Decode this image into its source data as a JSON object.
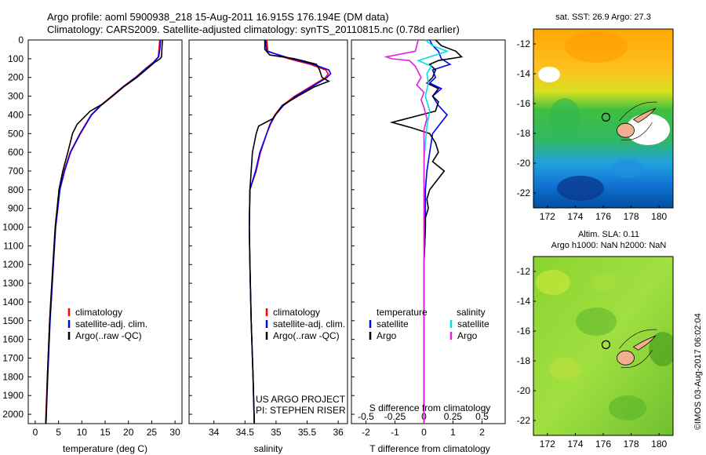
{
  "header": {
    "title_line1": "Argo profile: aoml 5900938_218 15-Aug-2011 16.915S 176.194E (DM data)",
    "title_line2": "Climatology: CARS2009. Satellite-adjusted climatology: synTS_20110815.nc (0.78d earlier)"
  },
  "colors": {
    "climatology": "#ff0000",
    "satellite": "#0000ff",
    "argo": "#000000",
    "salinity_satellite": "#00e0e0",
    "salinity_argo": "#e020e0",
    "land": "#f0b090"
  },
  "depth_axis": {
    "min": 0,
    "max": 2050,
    "inverted": true,
    "ticks": [
      0,
      100,
      200,
      300,
      400,
      500,
      600,
      700,
      800,
      900,
      1000,
      1100,
      1200,
      1300,
      1400,
      1500,
      1600,
      1700,
      1800,
      1900,
      2000
    ]
  },
  "chart_data": [
    {
      "type": "line",
      "id": "temperature",
      "xlabel": "temperature (deg C)",
      "xlim": [
        -1.5,
        31.5
      ],
      "xticks": [
        0,
        5,
        10,
        15,
        20,
        25,
        30
      ],
      "legend": {
        "placement": "lower-center",
        "entries": [
          "climatology",
          "satellite-adj. clim.",
          "Argo(..raw -QC)"
        ]
      },
      "series": [
        {
          "name": "climatology",
          "color": "#ff0000",
          "depth": [
            0,
            40,
            90,
            120,
            150,
            200,
            250,
            300,
            350,
            400,
            500,
            600,
            700,
            800,
            1000,
            1200,
            1500,
            1800,
            2050
          ],
          "values": [
            26.7,
            26.6,
            26.4,
            25.3,
            23.8,
            21.5,
            18.8,
            16.4,
            14.0,
            12.0,
            9.6,
            7.5,
            6.2,
            5.2,
            4.3,
            3.8,
            3.1,
            2.6,
            2.2
          ]
        },
        {
          "name": "satellite-adj. clim.",
          "color": "#0000ff",
          "depth": [
            0,
            40,
            90,
            120,
            150,
            200,
            250,
            300,
            350,
            400,
            500,
            600,
            700,
            800,
            1000,
            1200,
            1500,
            1800,
            2050
          ],
          "values": [
            26.9,
            26.8,
            26.5,
            25.4,
            23.9,
            21.6,
            18.9,
            16.5,
            14.1,
            12.1,
            9.7,
            7.6,
            6.3,
            5.3,
            4.4,
            3.9,
            3.2,
            2.7,
            2.3
          ]
        },
        {
          "name": "Argo(..raw -QC)",
          "color": "#000000",
          "depth": [
            0,
            40,
            90,
            100,
            120,
            150,
            200,
            250,
            300,
            340,
            380,
            450,
            500,
            550,
            600,
            700,
            800,
            1000,
            1200,
            1500,
            1800,
            2050
          ],
          "values": [
            27.3,
            27.2,
            27.1,
            26.8,
            25.6,
            24.2,
            21.8,
            19.0,
            16.6,
            14.6,
            11.8,
            9.0,
            8.0,
            7.5,
            7.0,
            5.9,
            5.1,
            4.3,
            3.8,
            3.1,
            2.6,
            2.3
          ]
        }
      ]
    },
    {
      "type": "line",
      "id": "salinity",
      "xlabel": "salinity",
      "xlim": [
        33.6,
        36.15
      ],
      "xticks": [
        34,
        34.5,
        35,
        35.5,
        36
      ],
      "legend": {
        "placement": "lower-center",
        "entries": [
          "climatology",
          "satellite-adj. clim.",
          "Argo(..raw -QC)"
        ]
      },
      "annotation": {
        "line1": "US ARGO PROJECT",
        "line2": "PI: STEPHEN RISER"
      },
      "series": [
        {
          "name": "climatology",
          "color": "#ff0000",
          "depth": [
            0,
            60,
            100,
            130,
            160,
            180,
            200,
            250,
            300,
            350,
            400,
            450,
            500,
            600,
            700,
            800,
            1000,
            1200,
            1500,
            1800,
            2050
          ],
          "values": [
            34.85,
            34.87,
            35.2,
            35.55,
            35.8,
            35.84,
            35.8,
            35.55,
            35.3,
            35.1,
            34.98,
            34.9,
            34.85,
            34.75,
            34.68,
            34.58,
            34.57,
            34.58,
            34.6,
            34.63,
            34.65
          ]
        },
        {
          "name": "satellite-adj. clim.",
          "color": "#0000ff",
          "depth": [
            0,
            60,
            100,
            130,
            160,
            180,
            200,
            250,
            300,
            350,
            400,
            450,
            500,
            600,
            700,
            800,
            1000,
            1200,
            1500,
            1800,
            2050
          ],
          "values": [
            34.83,
            34.85,
            35.25,
            35.6,
            35.85,
            35.88,
            35.82,
            35.58,
            35.32,
            35.12,
            34.99,
            34.91,
            34.85,
            34.74,
            34.67,
            34.58,
            34.57,
            34.58,
            34.6,
            34.63,
            34.65
          ]
        },
        {
          "name": "Argo(..raw -QC)",
          "color": "#000000",
          "depth": [
            0,
            50,
            80,
            100,
            130,
            160,
            200,
            220,
            250,
            300,
            350,
            420,
            460,
            500,
            600,
            700,
            800,
            1000,
            1200,
            1500,
            1800,
            2050
          ],
          "values": [
            34.82,
            34.82,
            34.9,
            35.3,
            35.65,
            35.7,
            35.74,
            35.85,
            35.62,
            35.35,
            35.1,
            34.95,
            34.72,
            34.68,
            34.62,
            34.6,
            34.58,
            34.57,
            34.58,
            34.6,
            34.63,
            34.65
          ]
        }
      ]
    },
    {
      "type": "line",
      "id": "difference",
      "xlabel": "T difference from climatology",
      "xlabel_top": "S difference from climatology",
      "xlim": [
        -2.5,
        2.8
      ],
      "xticks": [
        -2,
        -1,
        0,
        1,
        2
      ],
      "xticks_top": [
        "-0.5",
        "-0.25",
        "0",
        "0.25",
        "0.5"
      ],
      "legend": {
        "placement": "lower-center",
        "groups": [
          {
            "title": "temperature",
            "entries": [
              "satellite",
              "Argo"
            ]
          },
          {
            "title": "salinity",
            "entries": [
              "satellite",
              "Argo"
            ]
          }
        ]
      },
      "series": [
        {
          "name": "temperature satellite",
          "color": "#0000ff",
          "depth": [
            0,
            30,
            60,
            100,
            130,
            160,
            200,
            230,
            260,
            300,
            350,
            400,
            500,
            600,
            700,
            800,
            900,
            1000,
            1200,
            1500,
            2050
          ],
          "values": [
            0.2,
            0.3,
            0.5,
            0.6,
            0.9,
            0.3,
            0.4,
            0.2,
            0.6,
            0.3,
            0.5,
            0.8,
            0.3,
            0.2,
            0.1,
            0.05,
            0.05,
            0.05,
            0.0,
            0.0,
            0.0
          ]
        },
        {
          "name": "temperature Argo",
          "color": "#000000",
          "depth": [
            0,
            30,
            60,
            90,
            110,
            130,
            160,
            200,
            230,
            260,
            300,
            330,
            380,
            440,
            470,
            500,
            550,
            600,
            650,
            700,
            800,
            850,
            900,
            950,
            1000,
            1200,
            1500,
            2050
          ],
          "values": [
            0.4,
            0.6,
            1.1,
            1.3,
            0.5,
            0.2,
            0.4,
            0.3,
            0.1,
            0.5,
            0.3,
            0.5,
            0.4,
            -1.1,
            -0.4,
            0.2,
            0.4,
            0.5,
            0.3,
            0.7,
            0.2,
            0.1,
            0.15,
            0.05,
            0.05,
            0.0,
            0.0,
            0.0
          ]
        },
        {
          "name": "salinity satellite",
          "color": "#00e0e0",
          "depth": [
            0,
            30,
            60,
            90,
            110,
            140,
            180,
            230,
            300,
            380,
            460,
            550,
            650,
            800,
            1000,
            1500,
            2050
          ],
          "values": [
            0.05,
            0.3,
            0.8,
            0.2,
            -0.2,
            0.25,
            0.1,
            0.15,
            0.05,
            0.2,
            0.1,
            0.05,
            0.0,
            0.0,
            0.0,
            0.0,
            0.0
          ]
        },
        {
          "name": "salinity Argo",
          "color": "#e020e0",
          "depth": [
            0,
            60,
            90,
            100,
            110,
            140,
            170,
            200,
            240,
            280,
            320,
            360,
            420,
            480,
            540,
            600,
            700,
            800,
            1000,
            1500,
            2050
          ],
          "values": [
            -0.2,
            -0.3,
            -1.3,
            -1.1,
            -0.5,
            -0.3,
            -0.2,
            -0.1,
            -0.25,
            0.0,
            -0.1,
            0.0,
            0.1,
            0.0,
            0.0,
            0.0,
            0.0,
            0.0,
            0.0,
            0.0,
            0.0
          ]
        }
      ]
    },
    {
      "type": "heatmap",
      "id": "sst-map",
      "title": "sat. SST: 26.9  Argo: 27.3",
      "xlim": [
        171,
        181
      ],
      "ylim": [
        -23,
        -11
      ],
      "xticks": [
        172,
        174,
        176,
        178,
        180
      ],
      "yticks": [
        -12,
        -14,
        -16,
        -18,
        -20,
        -22
      ],
      "marker": {
        "lon": 176.194,
        "lat": -16.915
      }
    },
    {
      "type": "heatmap",
      "id": "sla-map",
      "title_line1": "Altim. SLA: 0.11",
      "title_line2": "Argo h1000: NaN h2000: NaN",
      "xlim": [
        171,
        181
      ],
      "ylim": [
        -23,
        -11
      ],
      "xticks": [
        172,
        174,
        176,
        178,
        180
      ],
      "yticks": [
        -12,
        -14,
        -16,
        -18,
        -20,
        -22
      ],
      "marker": {
        "lon": 176.194,
        "lat": -16.915
      }
    }
  ],
  "footer": {
    "credit": "©IMOS 03-Aug-2017 06:02:04"
  }
}
